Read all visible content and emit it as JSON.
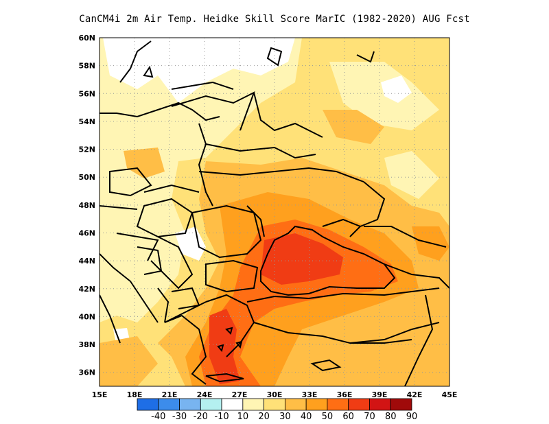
{
  "title": "CanCM4i  2m Air Temp. Heidke Skill Score MarIC (1982-2020) AUG Fcst",
  "map": {
    "lon_range": [
      15,
      45
    ],
    "lat_range": [
      35,
      60
    ],
    "lat_ticks": [
      "36N",
      "38N",
      "40N",
      "42N",
      "44N",
      "46N",
      "48N",
      "50N",
      "52N",
      "54N",
      "56N",
      "58N",
      "60N"
    ],
    "lon_ticks": [
      "15E",
      "18E",
      "21E",
      "24E",
      "27E",
      "30E",
      "33E",
      "36E",
      "39E",
      "42E",
      "45E"
    ],
    "gridlines": "dotted"
  },
  "colorbar": {
    "labels": [
      "-40",
      "-30",
      "-20",
      "-10",
      "10",
      "20",
      "30",
      "40",
      "50",
      "60",
      "70",
      "80",
      "90"
    ],
    "colors": [
      "#1e6ee6",
      "#3c8ceb",
      "#78b4f0",
      "#b4f0f0",
      "#ffffff",
      "#fff5b4",
      "#ffe178",
      "#ffbe46",
      "#ffa01e",
      "#ff6e14",
      "#f03c14",
      "#d21414",
      "#a00a0a"
    ]
  },
  "regions": [
    {
      "class": "10-20",
      "color": "#fff5b4"
    },
    {
      "class": "20-30",
      "color": "#ffe178"
    },
    {
      "class": "30-40",
      "color": "#ffbe46"
    },
    {
      "class": "40-50",
      "color": "#ffa01e"
    },
    {
      "class": "50-60",
      "color": "#ff6e14"
    },
    {
      "class": "60-70",
      "color": "#f03c14"
    },
    {
      "class": "<10",
      "color": "#ffffff"
    }
  ]
}
